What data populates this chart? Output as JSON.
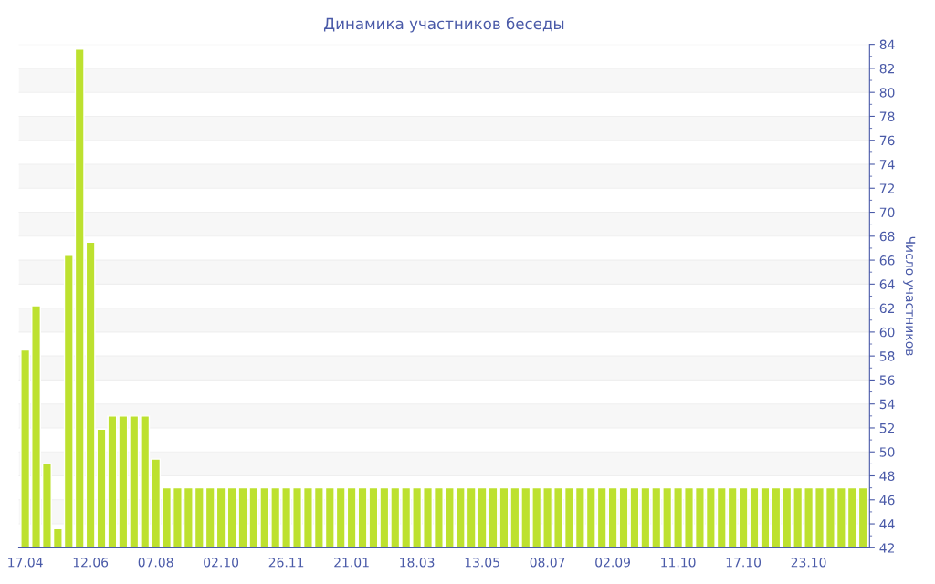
{
  "chart_data": {
    "type": "bar",
    "title": "Динамика участников беседы",
    "ylabel": "Число участников",
    "categories": [
      "17.04",
      null,
      null,
      null,
      null,
      null,
      "12.06",
      null,
      null,
      null,
      null,
      null,
      "07.08",
      null,
      null,
      null,
      null,
      null,
      "02.10",
      null,
      null,
      null,
      null,
      null,
      "26.11",
      null,
      null,
      null,
      null,
      null,
      "21.01",
      null,
      null,
      null,
      null,
      null,
      "18.03",
      null,
      null,
      null,
      null,
      null,
      "13.05",
      null,
      null,
      null,
      null,
      null,
      "08.07",
      null,
      null,
      null,
      null,
      null,
      "02.09",
      null,
      null,
      null,
      null,
      null,
      "11.10",
      null,
      null,
      null,
      null,
      null,
      "17.10",
      null,
      null,
      null,
      null,
      null,
      "23.10",
      null,
      null,
      null,
      null,
      null
    ],
    "values": [
      58.5,
      62.2,
      49,
      43.6,
      66.4,
      83.6,
      67.5,
      51.9,
      53,
      53,
      53,
      53,
      49.4,
      47,
      47,
      47,
      47,
      47,
      47,
      47,
      47,
      47,
      47,
      47,
      47,
      47,
      47,
      47,
      47,
      47,
      47,
      47,
      47,
      47,
      47,
      47,
      47,
      47,
      47,
      47,
      47,
      47,
      47,
      47,
      47,
      47,
      47,
      47,
      47,
      47,
      47,
      47,
      47,
      47,
      47,
      47,
      47,
      47,
      47,
      47,
      47,
      47,
      47,
      47,
      47,
      47,
      47,
      47,
      47,
      47,
      47,
      47,
      47,
      47,
      47,
      47,
      47,
      47
    ],
    "color": "#bde12f",
    "ylim": [
      42,
      84
    ],
    "yticks": [
      42,
      44,
      46,
      48,
      50,
      52,
      54,
      56,
      58,
      60,
      62,
      64,
      66,
      68,
      70,
      72,
      74,
      76,
      78,
      80,
      82,
      84
    ],
    "grid": true
  }
}
